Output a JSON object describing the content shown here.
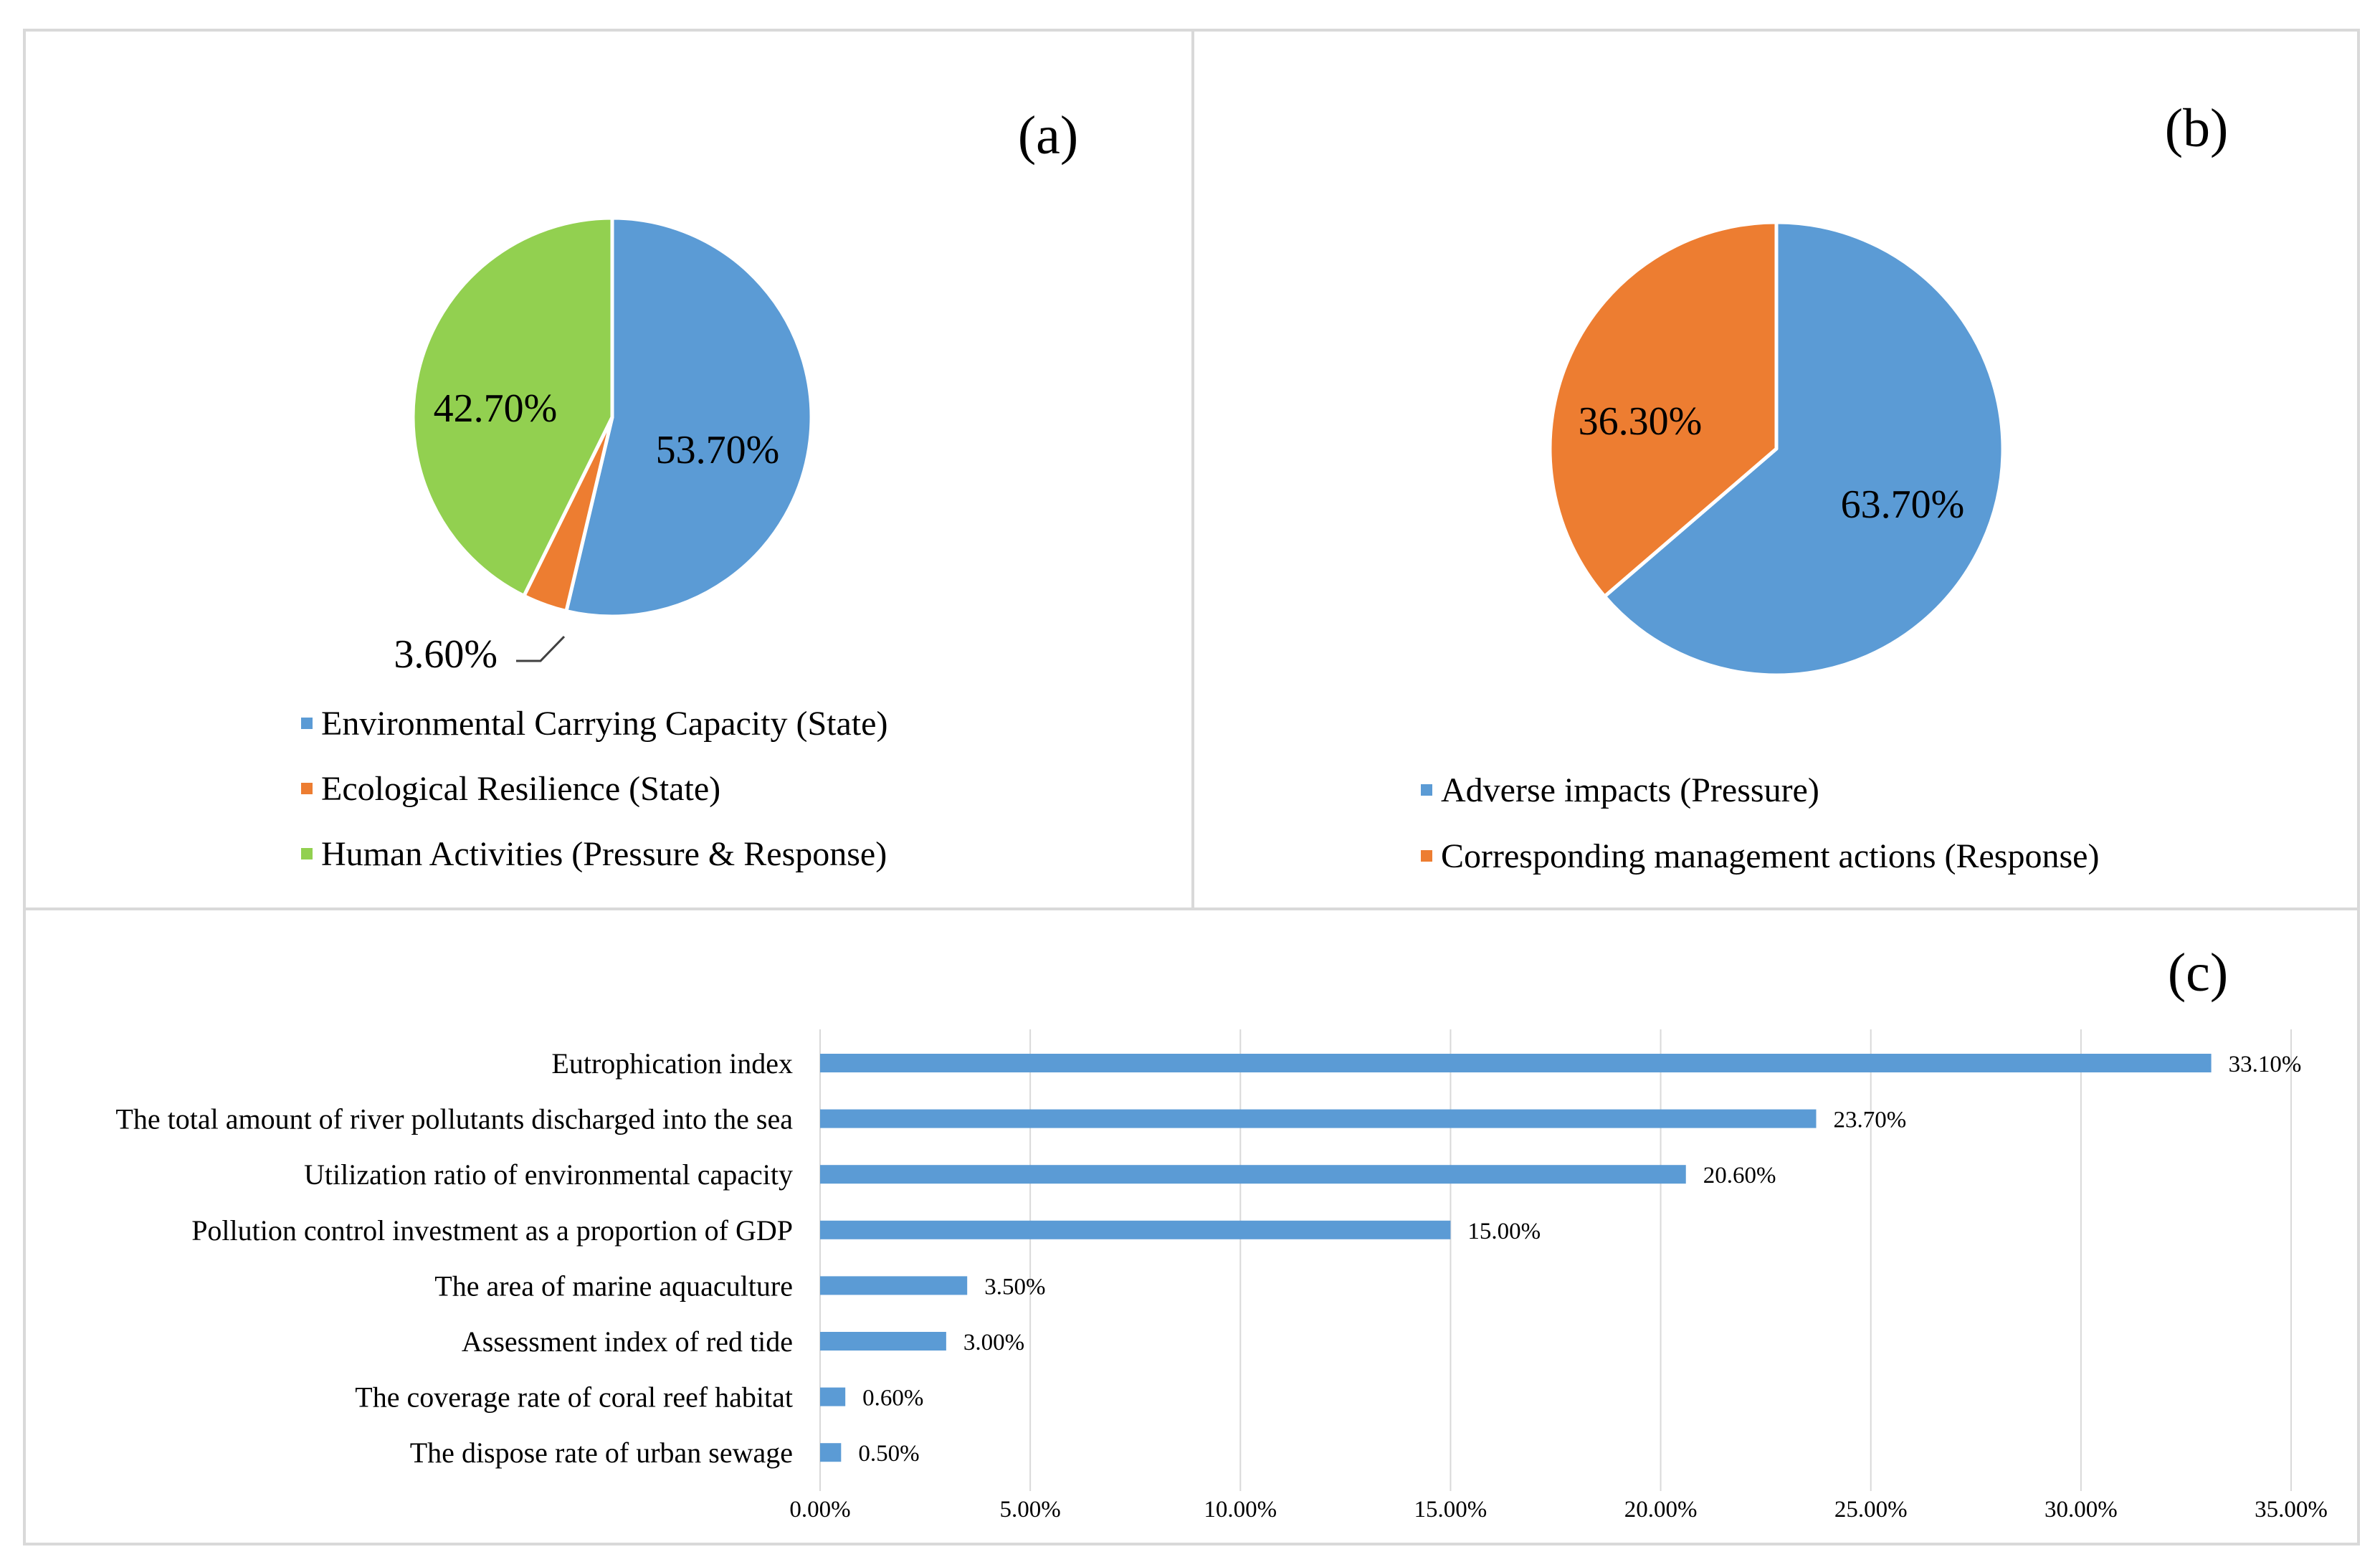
{
  "chart_data": [
    {
      "id": "a",
      "type": "pie",
      "panel_label": "(a)",
      "slices": [
        {
          "name": "Environmental Carrying Capacity (State)",
          "value": 53.7,
          "label": "53.70%",
          "color": "#5b9bd5"
        },
        {
          "name": "Ecological Resilience (State)",
          "value": 3.6,
          "label": "3.60%",
          "color": "#ed7d31"
        },
        {
          "name": "Human Activities (Pressure & Response)",
          "value": 42.7,
          "label": "42.70%",
          "color": "#92d050"
        }
      ]
    },
    {
      "id": "b",
      "type": "pie",
      "panel_label": "(b)",
      "slices": [
        {
          "name": "Adverse impacts (Pressure)",
          "value": 63.7,
          "label": "63.70%",
          "color": "#5b9bd5"
        },
        {
          "name": "Corresponding management actions (Response)",
          "value": 36.3,
          "label": "36.30%",
          "color": "#ed7d31"
        }
      ]
    },
    {
      "id": "c",
      "type": "bar",
      "orientation": "horizontal",
      "panel_label": "(c)",
      "color": "#5b9bd5",
      "categories": [
        "Eutrophication index",
        "The total amount of river pollutants discharged into the sea",
        "Utilization ratio of environmental capacity",
        "Pollution control investment as a proportion of GDP",
        "The area of marine aquaculture",
        "Assessment index of red tide",
        "The coverage rate of coral reef habitat",
        "The dispose rate of urban sewage"
      ],
      "values": [
        33.1,
        23.7,
        20.6,
        15.0,
        3.5,
        3.0,
        0.6,
        0.5
      ],
      "value_labels": [
        "33.10%",
        "23.70%",
        "20.60%",
        "15.00%",
        "3.50%",
        "3.00%",
        "0.60%",
        "0.50%"
      ],
      "xlim": [
        0,
        35
      ],
      "xticks": [
        0,
        5,
        10,
        15,
        20,
        25,
        30,
        35
      ],
      "xtick_labels": [
        "0.00%",
        "5.00%",
        "10.00%",
        "15.00%",
        "20.00%",
        "25.00%",
        "30.00%",
        "35.00%"
      ],
      "grid": true
    }
  ]
}
